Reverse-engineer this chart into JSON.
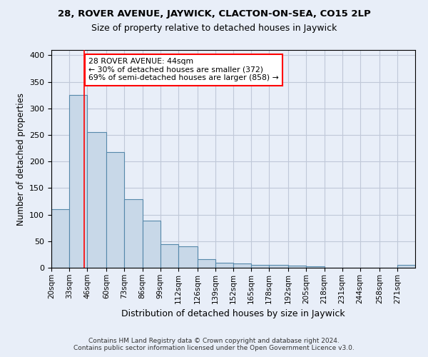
{
  "title": "28, ROVER AVENUE, JAYWICK, CLACTON-ON-SEA, CO15 2LP",
  "subtitle": "Size of property relative to detached houses in Jaywick",
  "xlabel": "Distribution of detached houses by size in Jaywick",
  "ylabel": "Number of detached properties",
  "footer_line1": "Contains HM Land Registry data © Crown copyright and database right 2024.",
  "footer_line2": "Contains public sector information licensed under the Open Government Licence v3.0.",
  "bin_edges": [
    20,
    33,
    46,
    60,
    73,
    86,
    99,
    112,
    126,
    139,
    152,
    165,
    178,
    192,
    205,
    218,
    231,
    244,
    258,
    271,
    284
  ],
  "bar_heights": [
    110,
    325,
    255,
    218,
    129,
    89,
    44,
    41,
    16,
    9,
    8,
    6,
    6,
    4,
    3,
    0,
    0,
    0,
    0,
    5
  ],
  "bar_color": "#c8d8e8",
  "bar_edge_color": "#5588aa",
  "grid_color": "#c0c8d8",
  "background_color": "#e8eef8",
  "red_line_x": 44,
  "annotation_text": "28 ROVER AVENUE: 44sqm\n← 30% of detached houses are smaller (372)\n69% of semi-detached houses are larger (858) →",
  "annotation_box_color": "white",
  "annotation_box_edge_color": "red",
  "ylim": [
    0,
    410
  ],
  "yticks": [
    0,
    50,
    100,
    150,
    200,
    250,
    300,
    350,
    400
  ]
}
